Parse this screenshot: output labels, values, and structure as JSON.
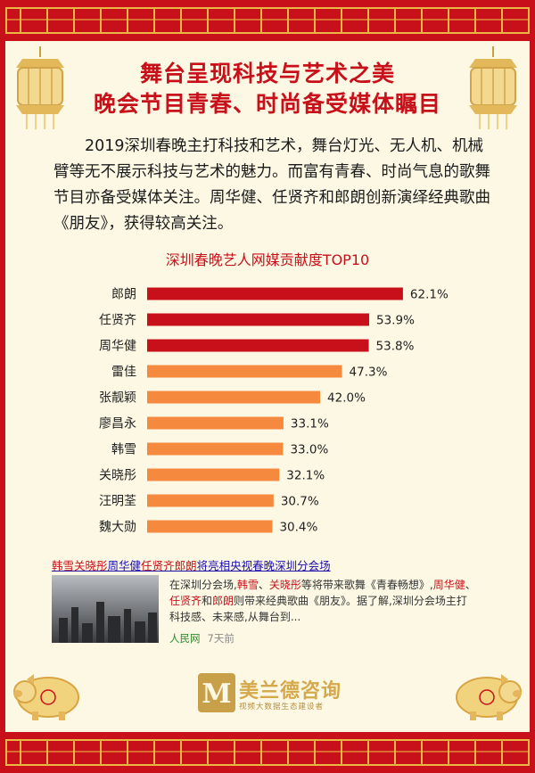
{
  "headline": {
    "line1": "舞台呈现科技与艺术之美",
    "line2": "晚会节目青春、时尚备受媒体瞩目"
  },
  "body_text": "2019深圳春晚主打科技和艺术，舞台灯光、无人机、机械臂等无不展示科技与艺术的魅力。而富有青春、时尚气息的歌舞节目亦备受媒体关注。周华健、任贤齐和郎朗创新演绎经典歌曲《朋友》，获得较高关注。",
  "chart_data": {
    "type": "bar",
    "orientation": "horizontal",
    "title": "深圳春晚艺人网媒贡献度TOP10",
    "categories": [
      "郎朗",
      "任贤齐",
      "周华健",
      "雷佳",
      "张靓颖",
      "廖昌永",
      "韩雪",
      "关晓彤",
      "汪明荃",
      "魏大勋"
    ],
    "values": [
      62.1,
      53.9,
      53.8,
      47.3,
      42.0,
      33.1,
      33.0,
      32.1,
      30.7,
      30.4
    ],
    "value_labels": [
      "62.1%",
      "53.9%",
      "53.8%",
      "47.3%",
      "42.0%",
      "33.1%",
      "33.0%",
      "32.1%",
      "30.7%",
      "30.4%"
    ],
    "unit": "%",
    "colors": {
      "top3": "#c8101a",
      "rest": "#f58a3e"
    },
    "grid": false,
    "legend": "none",
    "xlim": [
      0,
      70
    ]
  },
  "news": {
    "link_parts": [
      {
        "text": "韩雪",
        "hl": true
      },
      {
        "text": "关晓彤",
        "hl": true
      },
      {
        "text": "周华健",
        "hl": false
      },
      {
        "text": "任贤齐",
        "hl": true
      },
      {
        "text": "郎朗",
        "hl": true
      },
      {
        "text": "将亮相央视春晚深圳分会场",
        "hl": false
      }
    ],
    "snippet_parts": [
      {
        "text": "在深圳分会场,",
        "hl": false
      },
      {
        "text": "韩雪",
        "hl": true
      },
      {
        "text": "、",
        "hl": false
      },
      {
        "text": "关晓彤",
        "hl": true
      },
      {
        "text": "等将带来歌舞《青春畅想》,",
        "hl": false
      },
      {
        "text": "周华健",
        "hl": true
      },
      {
        "text": "、",
        "hl": false
      },
      {
        "text": "任贤齐",
        "hl": true
      },
      {
        "text": "和",
        "hl": false
      },
      {
        "text": "郎朗",
        "hl": true
      },
      {
        "text": "则带来经典歌曲《朋友》。据了解,深圳分会场主打科技感、未来感,从舞台到...",
        "hl": false
      }
    ],
    "source": "人民网",
    "time": "7天前"
  },
  "brand": {
    "name": "美兰德咨询",
    "logo_letter": "M",
    "tagline": "视频大数据生态建设者"
  }
}
